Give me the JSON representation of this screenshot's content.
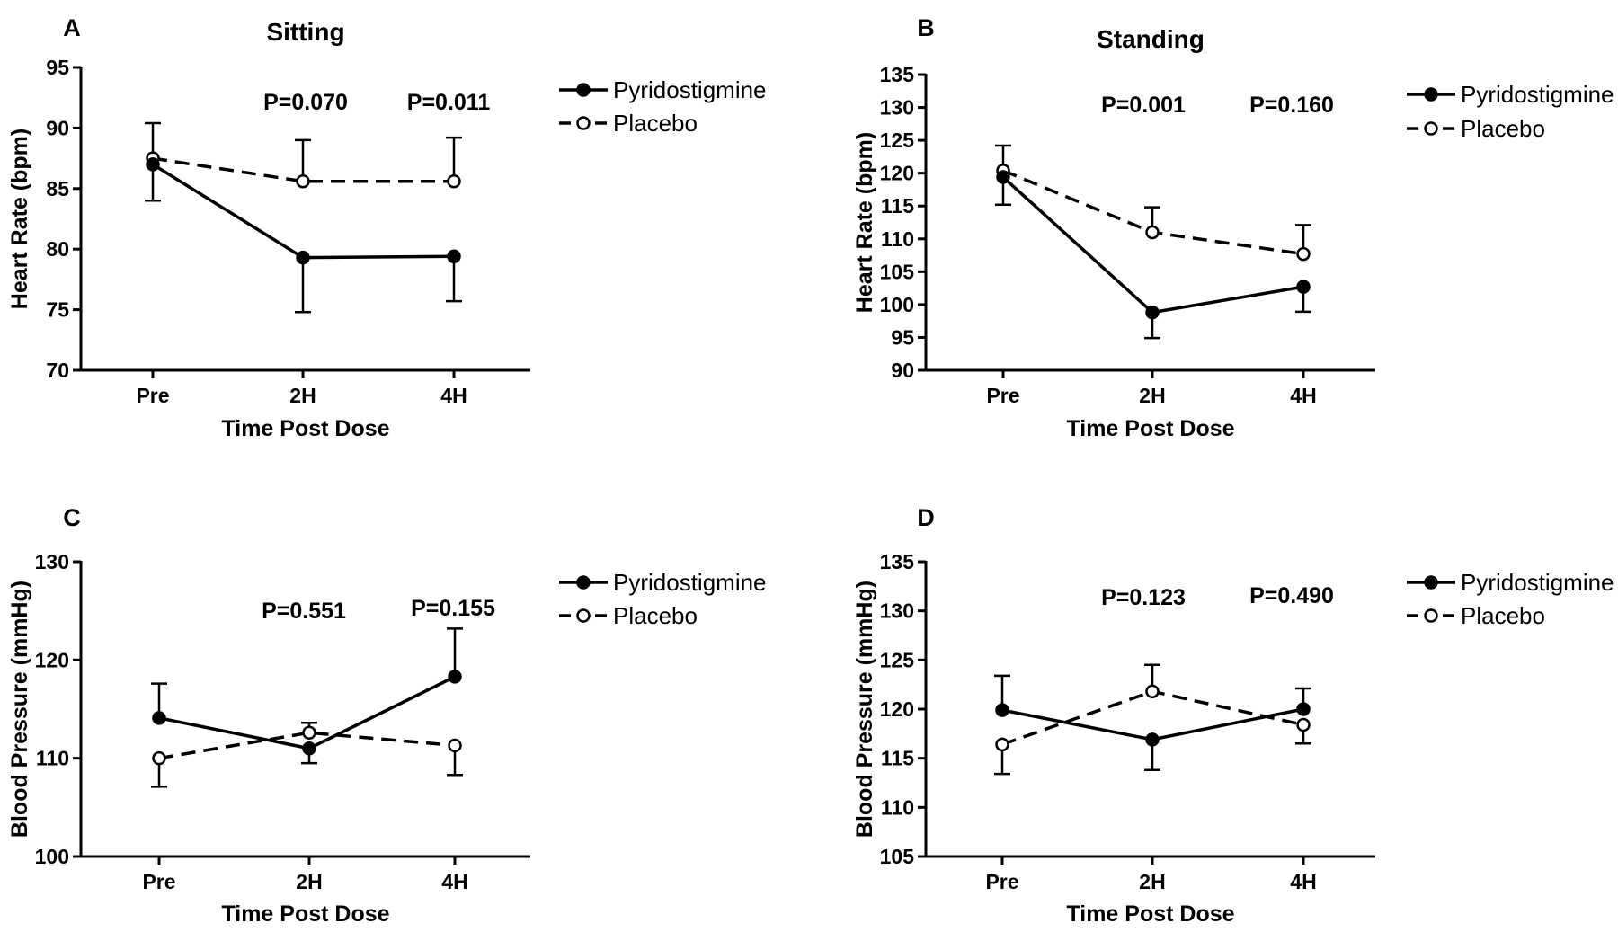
{
  "chart_data": [
    {
      "panel": "A",
      "type": "line",
      "title": "Sitting",
      "xlabel": "Time Post Dose",
      "ylabel": "Heart Rate (bpm)",
      "categories": [
        "Pre",
        "2H",
        "4H"
      ],
      "ylim": [
        70,
        95
      ],
      "yticks": [
        70,
        75,
        80,
        85,
        90,
        95
      ],
      "pvalues": [
        "P=0.070",
        "P=0.011"
      ],
      "series": [
        {
          "name": "Pyridostigmine",
          "style": "solid-filled",
          "values": [
            87.0,
            79.3,
            79.4
          ],
          "errors": [
            3.0,
            4.5,
            3.7
          ]
        },
        {
          "name": "Placebo",
          "style": "dashed-open",
          "values": [
            87.5,
            85.6,
            85.6
          ],
          "errors": [
            2.9,
            3.4,
            3.6
          ]
        }
      ]
    },
    {
      "panel": "B",
      "type": "line",
      "title": "Standing",
      "xlabel": "Time Post Dose",
      "ylabel": "Heart Rate (bpm)",
      "categories": [
        "Pre",
        "2H",
        "4H"
      ],
      "ylim": [
        90,
        135
      ],
      "yticks": [
        90,
        95,
        100,
        105,
        110,
        115,
        120,
        125,
        130,
        135
      ],
      "pvalues": [
        "P=0.001",
        "P=0.160"
      ],
      "series": [
        {
          "name": "Pyridostigmine",
          "style": "solid-filled",
          "values": [
            119.4,
            98.8,
            102.7
          ],
          "errors": [
            4.2,
            3.9,
            3.8
          ]
        },
        {
          "name": "Placebo",
          "style": "dashed-open",
          "values": [
            120.4,
            111.0,
            107.7
          ],
          "errors": [
            3.8,
            3.8,
            4.4
          ]
        }
      ]
    },
    {
      "panel": "C",
      "type": "line",
      "title": "",
      "xlabel": "Time Post Dose",
      "ylabel": "Blood Pressure (mmHg)",
      "categories": [
        "Pre",
        "2H",
        "4H"
      ],
      "ylim": [
        100,
        130
      ],
      "yticks": [
        100,
        110,
        120,
        130
      ],
      "pvalues": [
        "P=0.551",
        "P=0.155"
      ],
      "series": [
        {
          "name": "Pyridostigmine",
          "style": "solid-filled",
          "values": [
            114.1,
            111.0,
            118.3
          ],
          "errors": [
            3.5,
            1.5,
            4.9
          ]
        },
        {
          "name": "Placebo",
          "style": "dashed-open",
          "values": [
            110.0,
            112.6,
            111.3
          ],
          "errors": [
            2.9,
            1.0,
            3.0
          ]
        }
      ]
    },
    {
      "panel": "D",
      "type": "line",
      "title": "",
      "xlabel": "Time Post Dose",
      "ylabel": "Blood Pressure (mmHg)",
      "categories": [
        "Pre",
        "2H",
        "4H"
      ],
      "ylim": [
        105,
        135
      ],
      "yticks": [
        105,
        110,
        115,
        120,
        125,
        130,
        135
      ],
      "pvalues": [
        "P=0.123",
        "P=0.490"
      ],
      "series": [
        {
          "name": "Pyridostigmine",
          "style": "solid-filled",
          "values": [
            119.9,
            116.9,
            120.0
          ],
          "errors": [
            3.5,
            3.1,
            2.1
          ]
        },
        {
          "name": "Placebo",
          "style": "dashed-open",
          "values": [
            116.4,
            121.8,
            118.4
          ],
          "errors": [
            3.0,
            2.7,
            1.9
          ]
        }
      ]
    }
  ]
}
